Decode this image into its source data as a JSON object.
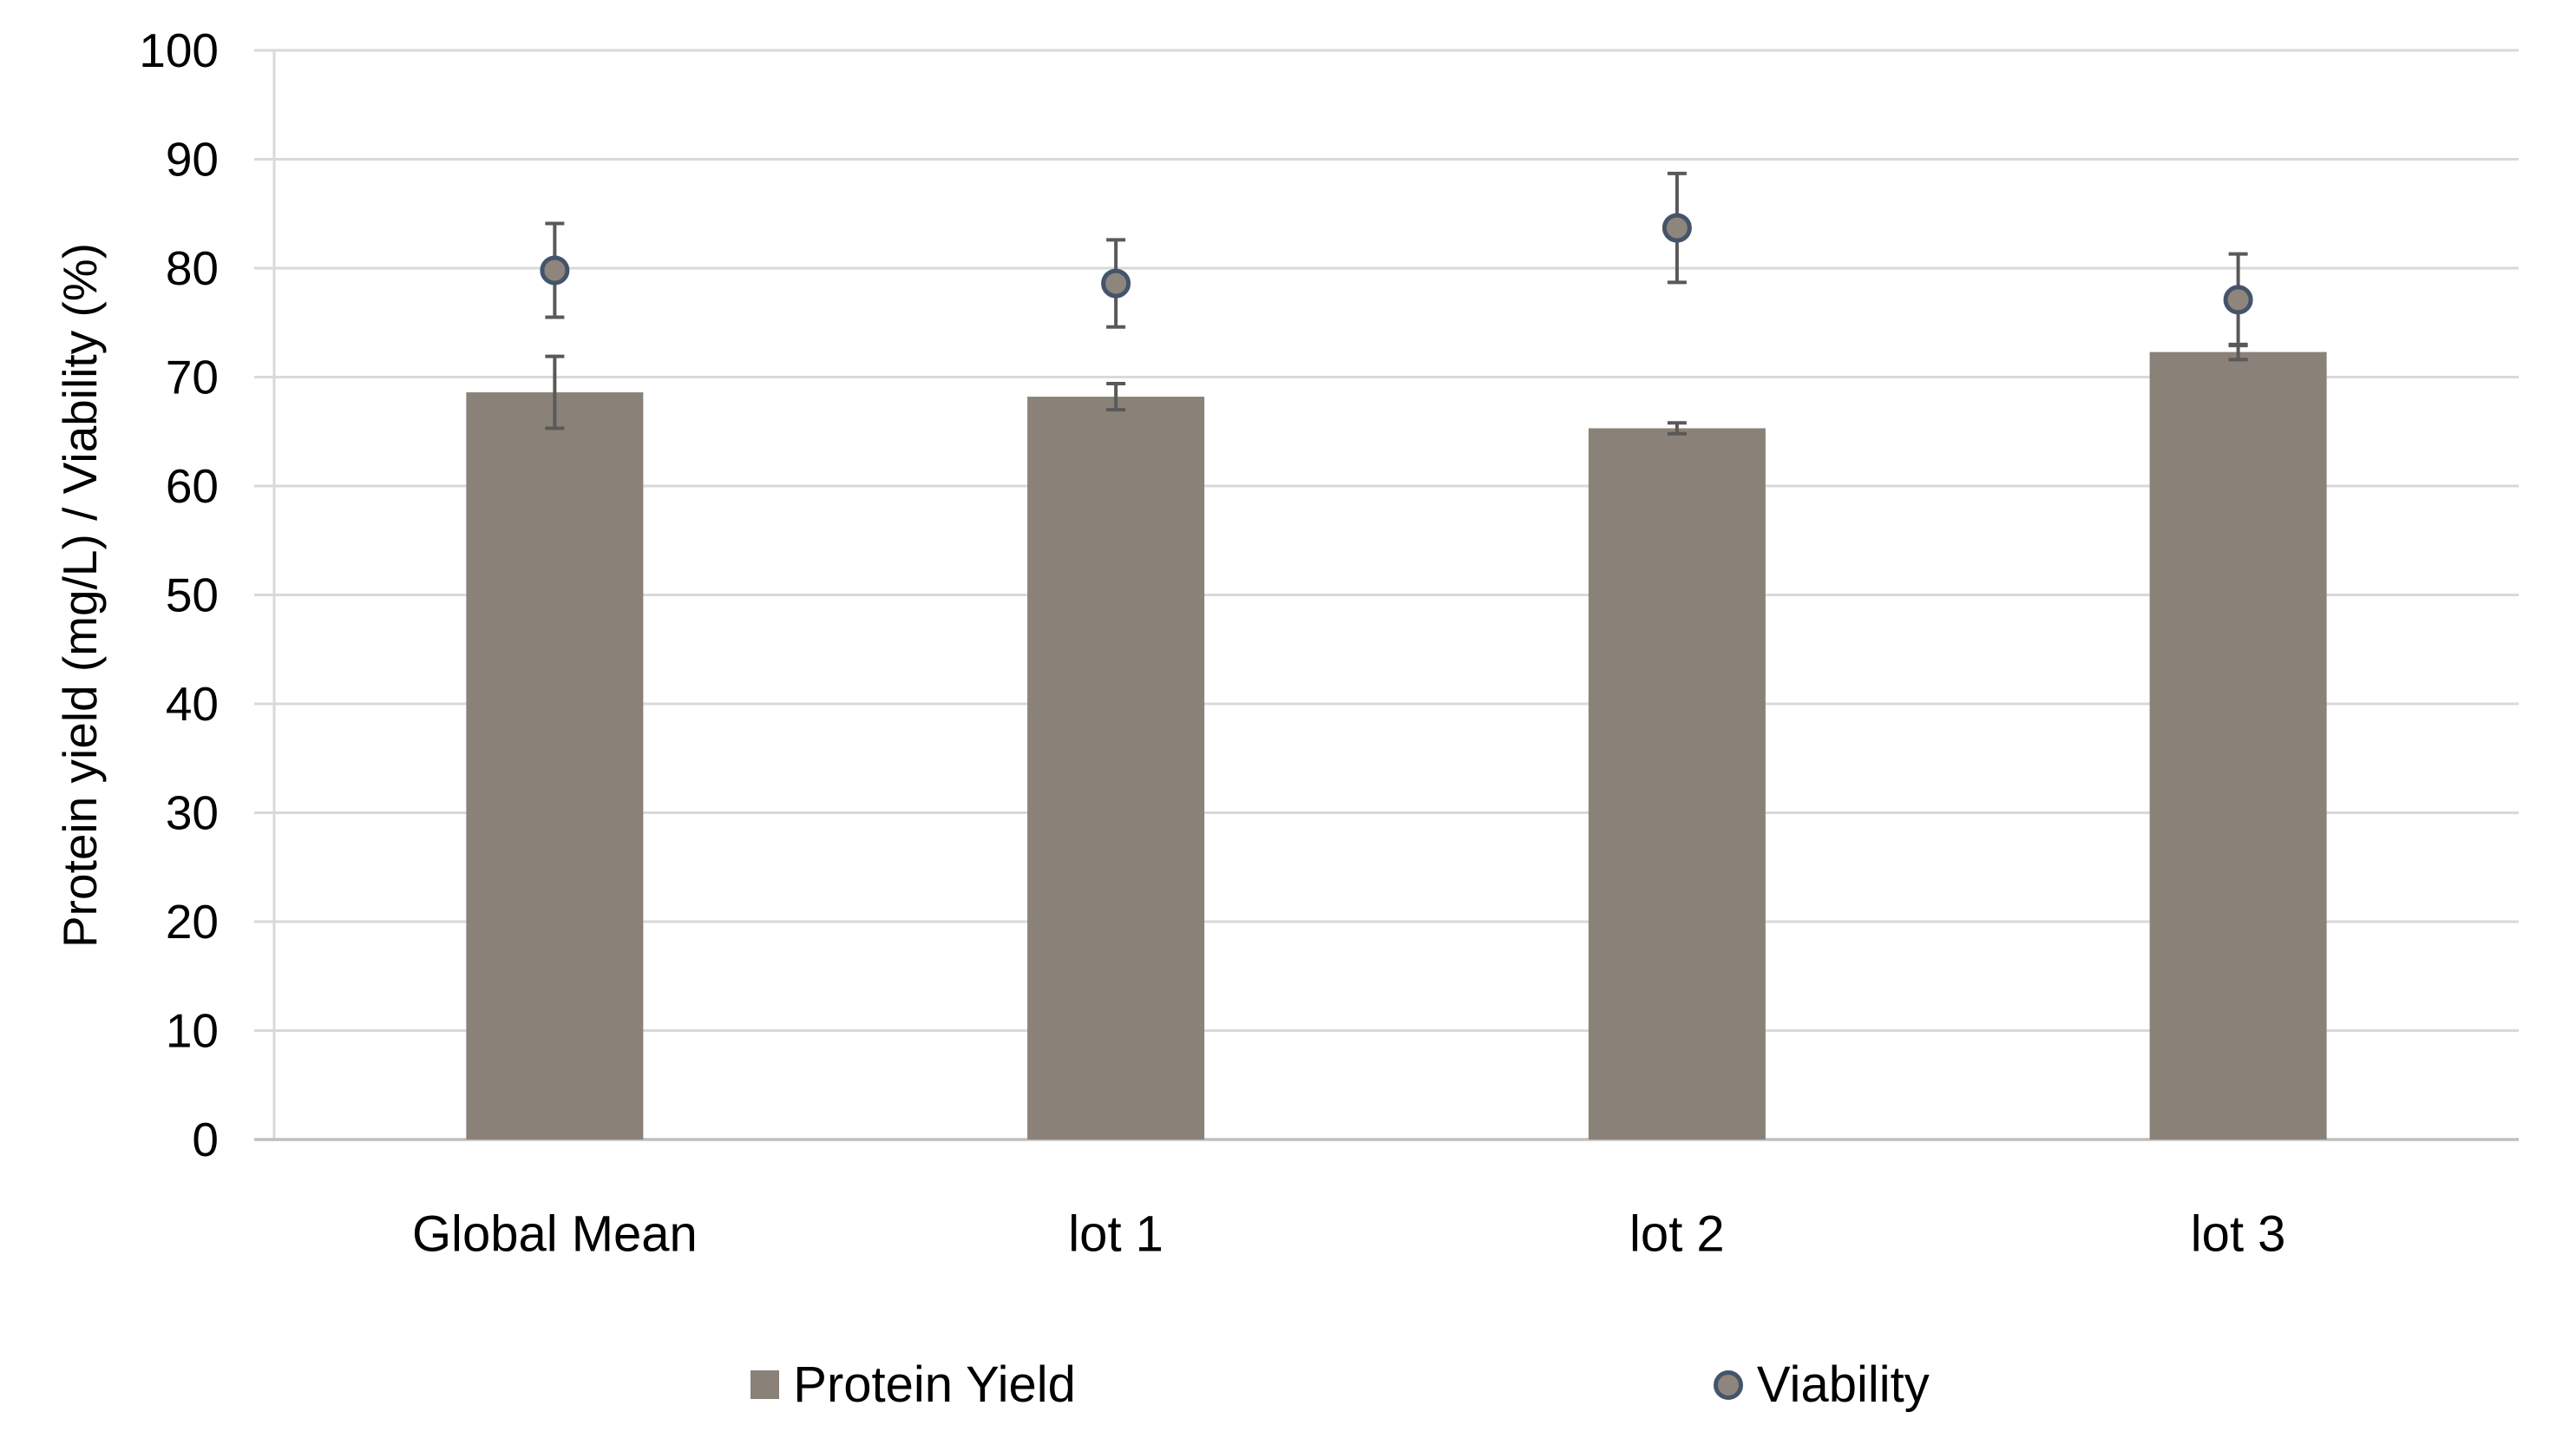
{
  "chart_data": {
    "type": "bar",
    "title": "",
    "categories": [
      "Global Mean",
      "lot 1",
      "lot 2",
      "lot 3"
    ],
    "series": [
      {
        "name": "Protein Yield",
        "type": "bar",
        "values": [
          68.6,
          68.2,
          65.3,
          72.3
        ],
        "errors": [
          3.3,
          1.2,
          0.5,
          0.7
        ],
        "color": "#8a8178"
      },
      {
        "name": "Viability",
        "type": "scatter",
        "values": [
          79.8,
          78.6,
          83.7,
          77.1
        ],
        "errors": [
          4.3,
          4.0,
          5.0,
          4.2
        ],
        "marker_fill": "#8e857c",
        "marker_outline": "#44546a"
      }
    ],
    "xlabel": "",
    "ylabel": "Protein yield (mg/L) / Viability (%)",
    "ylim": [
      0,
      100
    ],
    "ytick_step": 10,
    "grid": true,
    "legend_position": "bottom",
    "colors": {
      "gridline": "#d9d9d9",
      "axis_line": "#bfbfbf",
      "error_bar": "#595959",
      "text": "#000000",
      "background": "#ffffff"
    }
  }
}
